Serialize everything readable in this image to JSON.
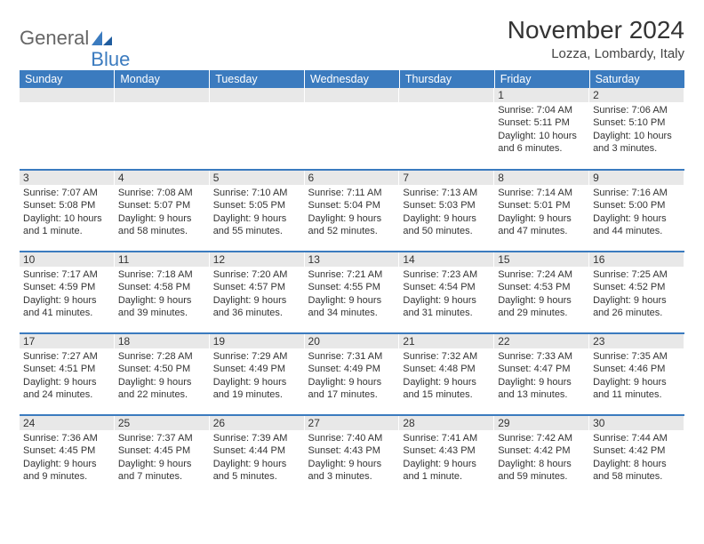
{
  "branding": {
    "word1": "General",
    "word2": "Blue",
    "mark_color": "#3b7bbf",
    "text_color_gray": "#666666"
  },
  "header": {
    "month_title": "November 2024",
    "location": "Lozza, Lombardy, Italy"
  },
  "colors": {
    "header_bg": "#3b7bbf",
    "header_text": "#ffffff",
    "daynum_bg": "#e8e8e8",
    "border": "#3b7bbf",
    "body_text": "#333333",
    "page_bg": "#ffffff"
  },
  "dayNames": [
    "Sunday",
    "Monday",
    "Tuesday",
    "Wednesday",
    "Thursday",
    "Friday",
    "Saturday"
  ],
  "weeks": [
    [
      {
        "n": "",
        "sunrise": "",
        "sunset": "",
        "daylight": ""
      },
      {
        "n": "",
        "sunrise": "",
        "sunset": "",
        "daylight": ""
      },
      {
        "n": "",
        "sunrise": "",
        "sunset": "",
        "daylight": ""
      },
      {
        "n": "",
        "sunrise": "",
        "sunset": "",
        "daylight": ""
      },
      {
        "n": "",
        "sunrise": "",
        "sunset": "",
        "daylight": ""
      },
      {
        "n": "1",
        "sunrise": "Sunrise: 7:04 AM",
        "sunset": "Sunset: 5:11 PM",
        "daylight": "Daylight: 10 hours and 6 minutes."
      },
      {
        "n": "2",
        "sunrise": "Sunrise: 7:06 AM",
        "sunset": "Sunset: 5:10 PM",
        "daylight": "Daylight: 10 hours and 3 minutes."
      }
    ],
    [
      {
        "n": "3",
        "sunrise": "Sunrise: 7:07 AM",
        "sunset": "Sunset: 5:08 PM",
        "daylight": "Daylight: 10 hours and 1 minute."
      },
      {
        "n": "4",
        "sunrise": "Sunrise: 7:08 AM",
        "sunset": "Sunset: 5:07 PM",
        "daylight": "Daylight: 9 hours and 58 minutes."
      },
      {
        "n": "5",
        "sunrise": "Sunrise: 7:10 AM",
        "sunset": "Sunset: 5:05 PM",
        "daylight": "Daylight: 9 hours and 55 minutes."
      },
      {
        "n": "6",
        "sunrise": "Sunrise: 7:11 AM",
        "sunset": "Sunset: 5:04 PM",
        "daylight": "Daylight: 9 hours and 52 minutes."
      },
      {
        "n": "7",
        "sunrise": "Sunrise: 7:13 AM",
        "sunset": "Sunset: 5:03 PM",
        "daylight": "Daylight: 9 hours and 50 minutes."
      },
      {
        "n": "8",
        "sunrise": "Sunrise: 7:14 AM",
        "sunset": "Sunset: 5:01 PM",
        "daylight": "Daylight: 9 hours and 47 minutes."
      },
      {
        "n": "9",
        "sunrise": "Sunrise: 7:16 AM",
        "sunset": "Sunset: 5:00 PM",
        "daylight": "Daylight: 9 hours and 44 minutes."
      }
    ],
    [
      {
        "n": "10",
        "sunrise": "Sunrise: 7:17 AM",
        "sunset": "Sunset: 4:59 PM",
        "daylight": "Daylight: 9 hours and 41 minutes."
      },
      {
        "n": "11",
        "sunrise": "Sunrise: 7:18 AM",
        "sunset": "Sunset: 4:58 PM",
        "daylight": "Daylight: 9 hours and 39 minutes."
      },
      {
        "n": "12",
        "sunrise": "Sunrise: 7:20 AM",
        "sunset": "Sunset: 4:57 PM",
        "daylight": "Daylight: 9 hours and 36 minutes."
      },
      {
        "n": "13",
        "sunrise": "Sunrise: 7:21 AM",
        "sunset": "Sunset: 4:55 PM",
        "daylight": "Daylight: 9 hours and 34 minutes."
      },
      {
        "n": "14",
        "sunrise": "Sunrise: 7:23 AM",
        "sunset": "Sunset: 4:54 PM",
        "daylight": "Daylight: 9 hours and 31 minutes."
      },
      {
        "n": "15",
        "sunrise": "Sunrise: 7:24 AM",
        "sunset": "Sunset: 4:53 PM",
        "daylight": "Daylight: 9 hours and 29 minutes."
      },
      {
        "n": "16",
        "sunrise": "Sunrise: 7:25 AM",
        "sunset": "Sunset: 4:52 PM",
        "daylight": "Daylight: 9 hours and 26 minutes."
      }
    ],
    [
      {
        "n": "17",
        "sunrise": "Sunrise: 7:27 AM",
        "sunset": "Sunset: 4:51 PM",
        "daylight": "Daylight: 9 hours and 24 minutes."
      },
      {
        "n": "18",
        "sunrise": "Sunrise: 7:28 AM",
        "sunset": "Sunset: 4:50 PM",
        "daylight": "Daylight: 9 hours and 22 minutes."
      },
      {
        "n": "19",
        "sunrise": "Sunrise: 7:29 AM",
        "sunset": "Sunset: 4:49 PM",
        "daylight": "Daylight: 9 hours and 19 minutes."
      },
      {
        "n": "20",
        "sunrise": "Sunrise: 7:31 AM",
        "sunset": "Sunset: 4:49 PM",
        "daylight": "Daylight: 9 hours and 17 minutes."
      },
      {
        "n": "21",
        "sunrise": "Sunrise: 7:32 AM",
        "sunset": "Sunset: 4:48 PM",
        "daylight": "Daylight: 9 hours and 15 minutes."
      },
      {
        "n": "22",
        "sunrise": "Sunrise: 7:33 AM",
        "sunset": "Sunset: 4:47 PM",
        "daylight": "Daylight: 9 hours and 13 minutes."
      },
      {
        "n": "23",
        "sunrise": "Sunrise: 7:35 AM",
        "sunset": "Sunset: 4:46 PM",
        "daylight": "Daylight: 9 hours and 11 minutes."
      }
    ],
    [
      {
        "n": "24",
        "sunrise": "Sunrise: 7:36 AM",
        "sunset": "Sunset: 4:45 PM",
        "daylight": "Daylight: 9 hours and 9 minutes."
      },
      {
        "n": "25",
        "sunrise": "Sunrise: 7:37 AM",
        "sunset": "Sunset: 4:45 PM",
        "daylight": "Daylight: 9 hours and 7 minutes."
      },
      {
        "n": "26",
        "sunrise": "Sunrise: 7:39 AM",
        "sunset": "Sunset: 4:44 PM",
        "daylight": "Daylight: 9 hours and 5 minutes."
      },
      {
        "n": "27",
        "sunrise": "Sunrise: 7:40 AM",
        "sunset": "Sunset: 4:43 PM",
        "daylight": "Daylight: 9 hours and 3 minutes."
      },
      {
        "n": "28",
        "sunrise": "Sunrise: 7:41 AM",
        "sunset": "Sunset: 4:43 PM",
        "daylight": "Daylight: 9 hours and 1 minute."
      },
      {
        "n": "29",
        "sunrise": "Sunrise: 7:42 AM",
        "sunset": "Sunset: 4:42 PM",
        "daylight": "Daylight: 8 hours and 59 minutes."
      },
      {
        "n": "30",
        "sunrise": "Sunrise: 7:44 AM",
        "sunset": "Sunset: 4:42 PM",
        "daylight": "Daylight: 8 hours and 58 minutes."
      }
    ]
  ]
}
